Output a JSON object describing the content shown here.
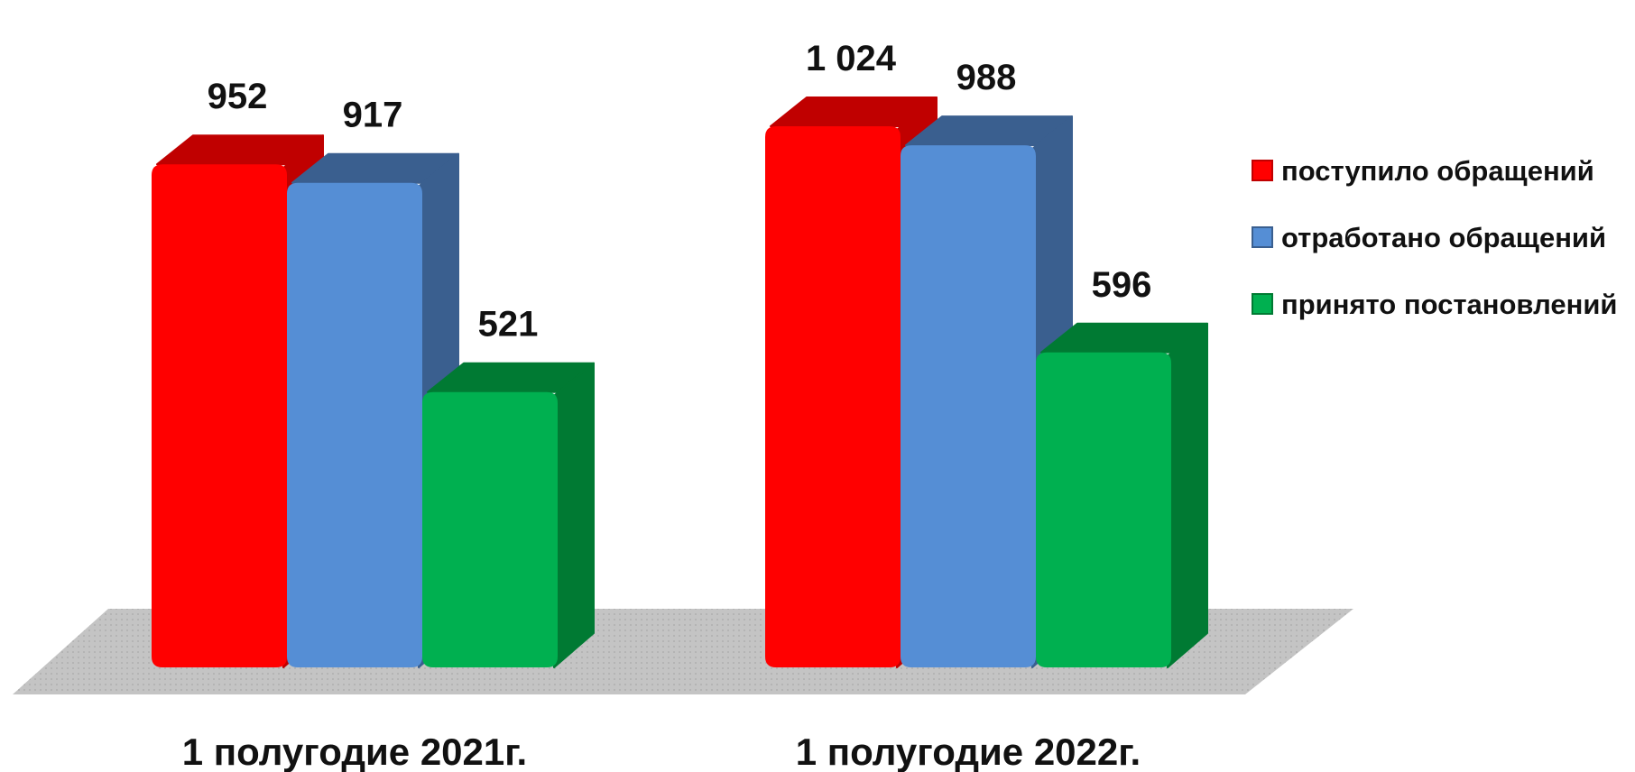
{
  "chart_data": {
    "type": "bar",
    "title": "",
    "xlabel": "",
    "ylabel": "",
    "categories": [
      "1 полугодие 2021г.",
      "1 полугодие 2022г."
    ],
    "series": [
      {
        "name": "поступило обращений",
        "color": "#ff0000",
        "side_color": "#c00000",
        "values": [
          952,
          1024
        ],
        "labels": [
          "952",
          "1 024"
        ]
      },
      {
        "name": "отработано обращений",
        "color": "#558ed5",
        "side_color": "#3a5f8f",
        "values": [
          917,
          988
        ],
        "labels": [
          "917",
          "988"
        ]
      },
      {
        "name": "принято постановлений",
        "color": "#00b050",
        "side_color": "#007a33",
        "values": [
          521,
          596
        ],
        "labels": [
          "521",
          "596"
        ]
      }
    ],
    "ylim": [
      0,
      1024
    ],
    "grid": false,
    "legend_position": "right",
    "floor_color": "#c0c0c0"
  }
}
